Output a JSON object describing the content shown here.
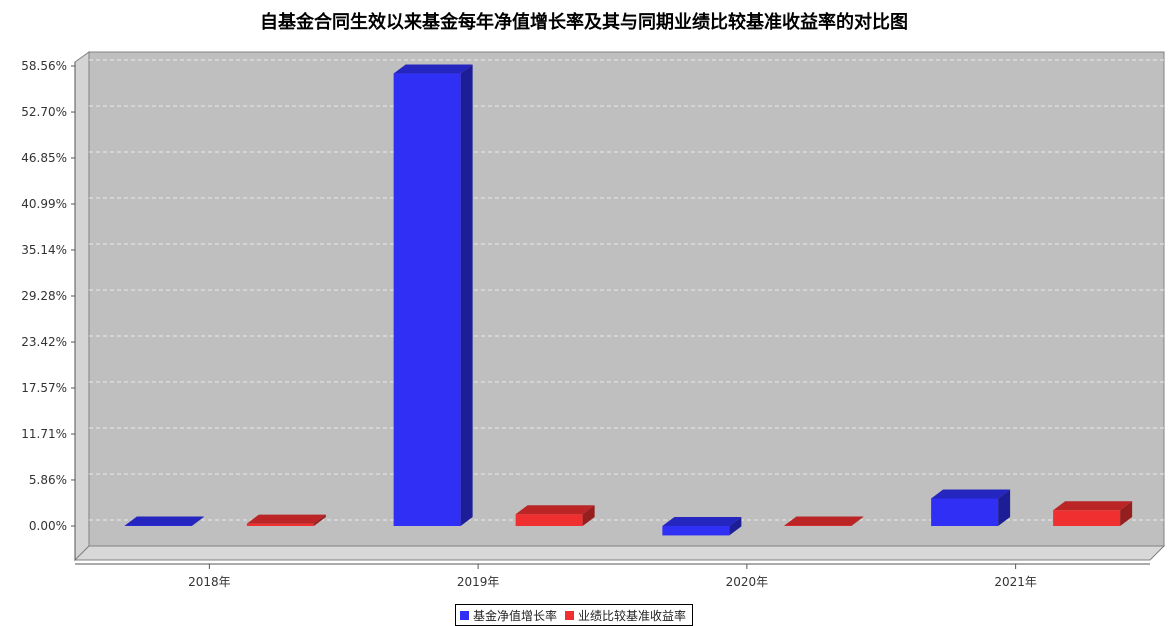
{
  "chart_data": {
    "type": "bar",
    "title": "自基金合同生效以来基金每年净值增长率及其与同期业绩比较基准收益率的对比图",
    "categories": [
      "2018年",
      "2019年",
      "2020年",
      "2021年"
    ],
    "series": [
      {
        "name": "基金净值增长率",
        "color": "#2f2ff5",
        "values": [
          0.0,
          57.6,
          -1.2,
          3.5
        ]
      },
      {
        "name": "业绩比较基准收益率",
        "color": "#f03030",
        "values": [
          0.3,
          1.5,
          0.1,
          2.0
        ]
      }
    ],
    "yticks": [
      "0.00%",
      "5.86%",
      "11.71%",
      "17.57%",
      "23.42%",
      "29.28%",
      "35.14%",
      "40.99%",
      "46.85%",
      "52.70%",
      "58.56%"
    ],
    "ylim": [
      -4.5,
      58.56
    ],
    "xlabel": "",
    "ylabel": "",
    "grid": true,
    "legend_position": "bottom-center"
  }
}
